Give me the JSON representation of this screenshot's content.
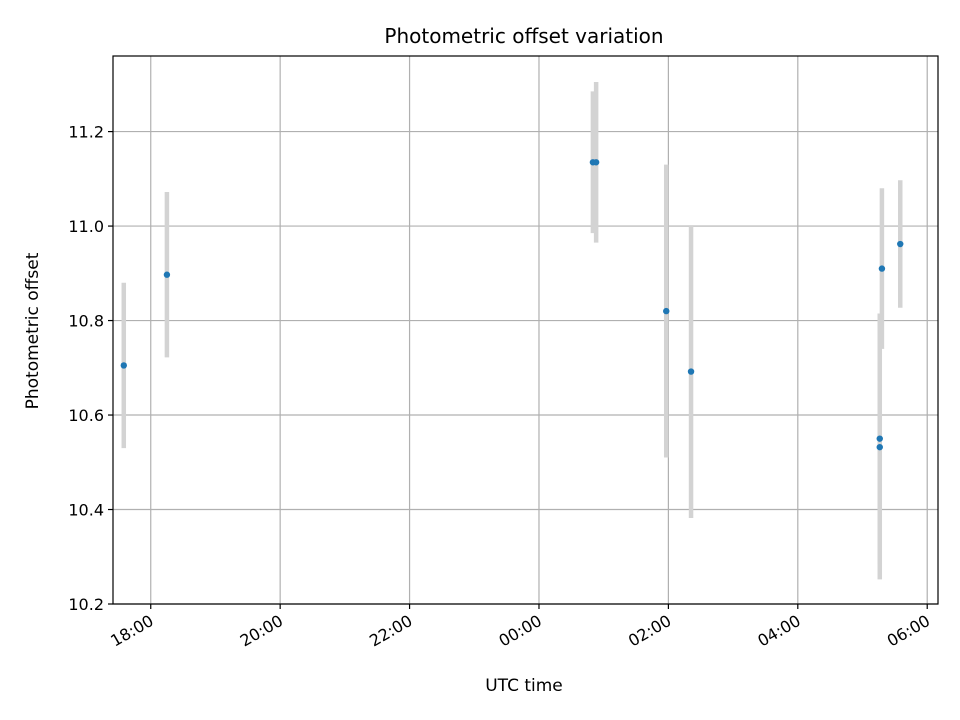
{
  "chart_data": {
    "type": "scatter",
    "title": "Photometric offset variation",
    "xlabel": "UTC time",
    "ylabel": "Photometric offset",
    "x_axis_type": "time",
    "xlim": [
      "17:25",
      "06:10"
    ],
    "ylim": [
      10.2,
      11.36
    ],
    "x_ticks": [
      "18:00",
      "20:00",
      "22:00",
      "00:00",
      "02:00",
      "04:00",
      "06:00"
    ],
    "y_ticks": [
      "10.2",
      "10.4",
      "10.6",
      "10.8",
      "11.0",
      "11.2"
    ],
    "grid": true,
    "x_tick_label_rotation": 30,
    "colors": {
      "point": "#1f77b4",
      "errorbar": "#d3d3d3",
      "grid": "#b0b0b0"
    },
    "points": [
      {
        "x": "17:35",
        "y": 10.705,
        "yerr": 0.175
      },
      {
        "x": "18:15",
        "y": 10.897,
        "yerr": 0.175
      },
      {
        "x": "00:50",
        "y": 11.135,
        "yerr": 0.15
      },
      {
        "x": "00:53",
        "y": 11.135,
        "yerr": 0.17
      },
      {
        "x": "01:58",
        "y": 10.82,
        "yerr": 0.31
      },
      {
        "x": "02:21",
        "y": 10.692,
        "yerr": 0.31
      },
      {
        "x": "05:16",
        "y": 10.55,
        "yerr": 0.265
      },
      {
        "x": "05:16",
        "y": 10.532,
        "yerr": 0.28
      },
      {
        "x": "05:18",
        "y": 10.91,
        "yerr": 0.17
      },
      {
        "x": "05:35",
        "y": 10.962,
        "yerr": 0.135
      }
    ]
  }
}
